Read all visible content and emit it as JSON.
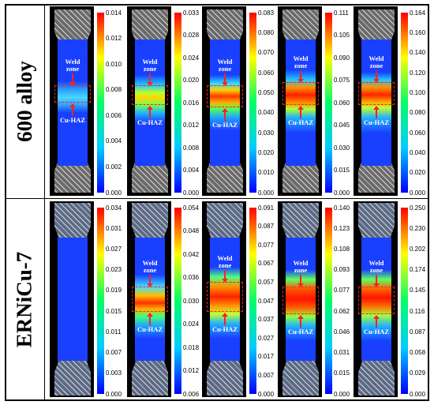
{
  "rows": [
    {
      "label": "600 alloy",
      "panels": [
        {
          "ticks": [
            "0.014",
            "0.012",
            "0.010",
            "0.008",
            "0.006",
            "0.004",
            "0.002",
            "0.000"
          ]
        },
        {
          "ticks": [
            "0.033",
            "0.028",
            "0.024",
            "0.020",
            "0.016",
            "0.012",
            "0.008",
            "0.004",
            "0.000"
          ]
        },
        {
          "ticks": [
            "0.083",
            "0.080",
            "0.070",
            "0.060",
            "0.050",
            "0.040",
            "0.030",
            "0.020",
            "0.010",
            "0.000"
          ]
        },
        {
          "ticks": [
            "0.111",
            "0.105",
            "0.090",
            "0.075",
            "0.060",
            "0.045",
            "0.030",
            "0.015",
            "0.000"
          ]
        },
        {
          "ticks": [
            "0.164",
            "0.160",
            "0.140",
            "0.120",
            "0.100",
            "0.080",
            "0.060",
            "0.040",
            "0.020",
            "0.000"
          ]
        }
      ]
    },
    {
      "label": "ERNiCu-7",
      "panels": [
        {
          "ticks": [
            "0.034",
            "0.031",
            "0.027",
            "0.023",
            "0.019",
            "0.015",
            "0.011",
            "0.007",
            "0.003",
            "0.000"
          ]
        },
        {
          "ticks": [
            "0.054",
            "0.048",
            "0.042",
            "0.036",
            "0.030",
            "0.024",
            "0.018",
            "0.012",
            "0.006"
          ]
        },
        {
          "ticks": [
            "0.091",
            "0.087",
            "0.077",
            "0.067",
            "0.057",
            "0.047",
            "0.037",
            "0.027",
            "0.017",
            "0.007",
            "0.000"
          ]
        },
        {
          "ticks": [
            "0.140",
            "0.123",
            "0.108",
            "0.093",
            "0.077",
            "0.062",
            "0.046",
            "0.031",
            "0.015",
            "0.000"
          ]
        },
        {
          "ticks": [
            "0.250",
            "0.230",
            "0.202",
            "0.174",
            "0.145",
            "0.116",
            "0.087",
            "0.058",
            "0.029",
            "0.000"
          ]
        }
      ]
    }
  ],
  "annotations": {
    "weld_zone_line1": "Weld",
    "weld_zone_line2": "zone",
    "cu_haz": "Cu-HAZ"
  },
  "colors": {
    "colorbar": [
      "#ff0000",
      "#ffff00",
      "#00ff66",
      "#00ccff",
      "#0000ff"
    ],
    "haz_box": "#ff2020",
    "strain_base": "#1a40ff"
  }
}
